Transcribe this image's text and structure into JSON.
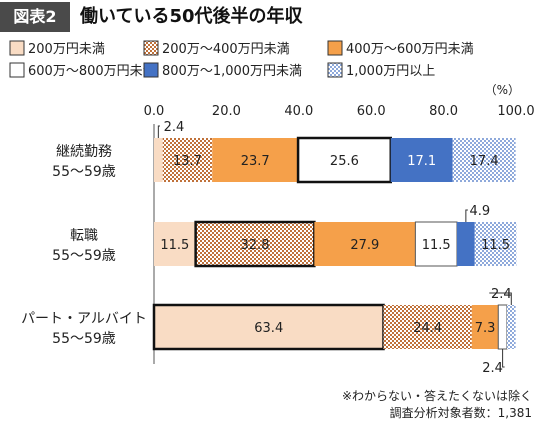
{
  "figure_label": "図表2",
  "figure_title": "働いている50代後半の年収",
  "footnotes": [
    "※わからない・答えたくないは除く",
    "調査分析対象者数：1,381"
  ],
  "chart_data": {
    "type": "bar",
    "orientation": "horizontal",
    "stacked": true,
    "unit_label": "（%）",
    "xlim": [
      0,
      100
    ],
    "x_ticks": [
      "0.0",
      "20.0",
      "40.0",
      "60.0",
      "80.0",
      "100.0"
    ],
    "legend_position": "top",
    "categories": [
      [
        "継続勤務",
        "55～59歳"
      ],
      [
        "転職",
        "55～59歳"
      ],
      [
        "パート・アルバイト",
        "55～59歳"
      ]
    ],
    "series": [
      {
        "name": "200万円未満",
        "values": [
          2.4,
          11.5,
          63.4
        ],
        "labels": [
          "2.4",
          "11.5",
          "63.4"
        ],
        "color": "#f9dcc4",
        "pattern": "solid"
      },
      {
        "name": "200万～400万円未満",
        "values": [
          13.7,
          32.8,
          24.4
        ],
        "labels": [
          "13.7",
          "32.8",
          "24.4"
        ],
        "color": "#c0713a",
        "pattern": "dots"
      },
      {
        "name": "400万～600万円未満",
        "values": [
          23.7,
          27.9,
          7.3
        ],
        "labels": [
          "23.7",
          "27.9",
          "7.3"
        ],
        "color": "#f5a04a",
        "pattern": "solid"
      },
      {
        "name": "600万～800万円未満",
        "values": [
          25.6,
          11.5,
          2.4
        ],
        "labels": [
          "25.6",
          "11.5",
          "2.4"
        ],
        "color": "#ffffff",
        "pattern": "solid"
      },
      {
        "name": "800万～1,000万円未満",
        "values": [
          17.1,
          4.9,
          0.0
        ],
        "labels": [
          "17.1",
          "4.9",
          ""
        ],
        "color": "#4472c4",
        "pattern": "solid"
      },
      {
        "name": "1,000万円以上",
        "values": [
          17.4,
          11.5,
          2.4
        ],
        "labels": [
          "17.4",
          "11.5",
          "2.4"
        ],
        "color": "#8ea9db",
        "pattern": "dots"
      }
    ],
    "highlighted": [
      {
        "category": 0,
        "series": 3
      },
      {
        "category": 1,
        "series": 1
      },
      {
        "category": 2,
        "series": 0
      }
    ]
  }
}
